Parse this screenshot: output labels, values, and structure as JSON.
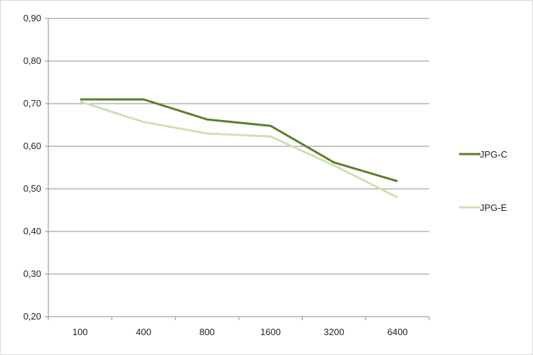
{
  "chart_data": {
    "type": "line",
    "title": "",
    "xlabel": "",
    "ylabel": "",
    "categories": [
      "100",
      "400",
      "800",
      "1600",
      "3200",
      "6400"
    ],
    "series": [
      {
        "name": "JPG-C",
        "values": [
          0.71,
          0.71,
          0.663,
          0.648,
          0.562,
          0.518
        ],
        "color": "#5b7f2a"
      },
      {
        "name": "JPG-E",
        "values": [
          0.705,
          0.657,
          0.63,
          0.623,
          0.555,
          0.48
        ],
        "color": "#cfe0b4"
      }
    ],
    "ylim": [
      0.2,
      0.9
    ],
    "yticks": [
      0.2,
      0.3,
      0.4,
      0.5,
      0.6,
      0.7,
      0.8,
      0.9
    ],
    "ytick_labels": [
      "0,20",
      "0,30",
      "0,40",
      "0,50",
      "0,60",
      "0,70",
      "0,80",
      "0,90"
    ],
    "grid": "horizontal",
    "legend_position": "right"
  }
}
